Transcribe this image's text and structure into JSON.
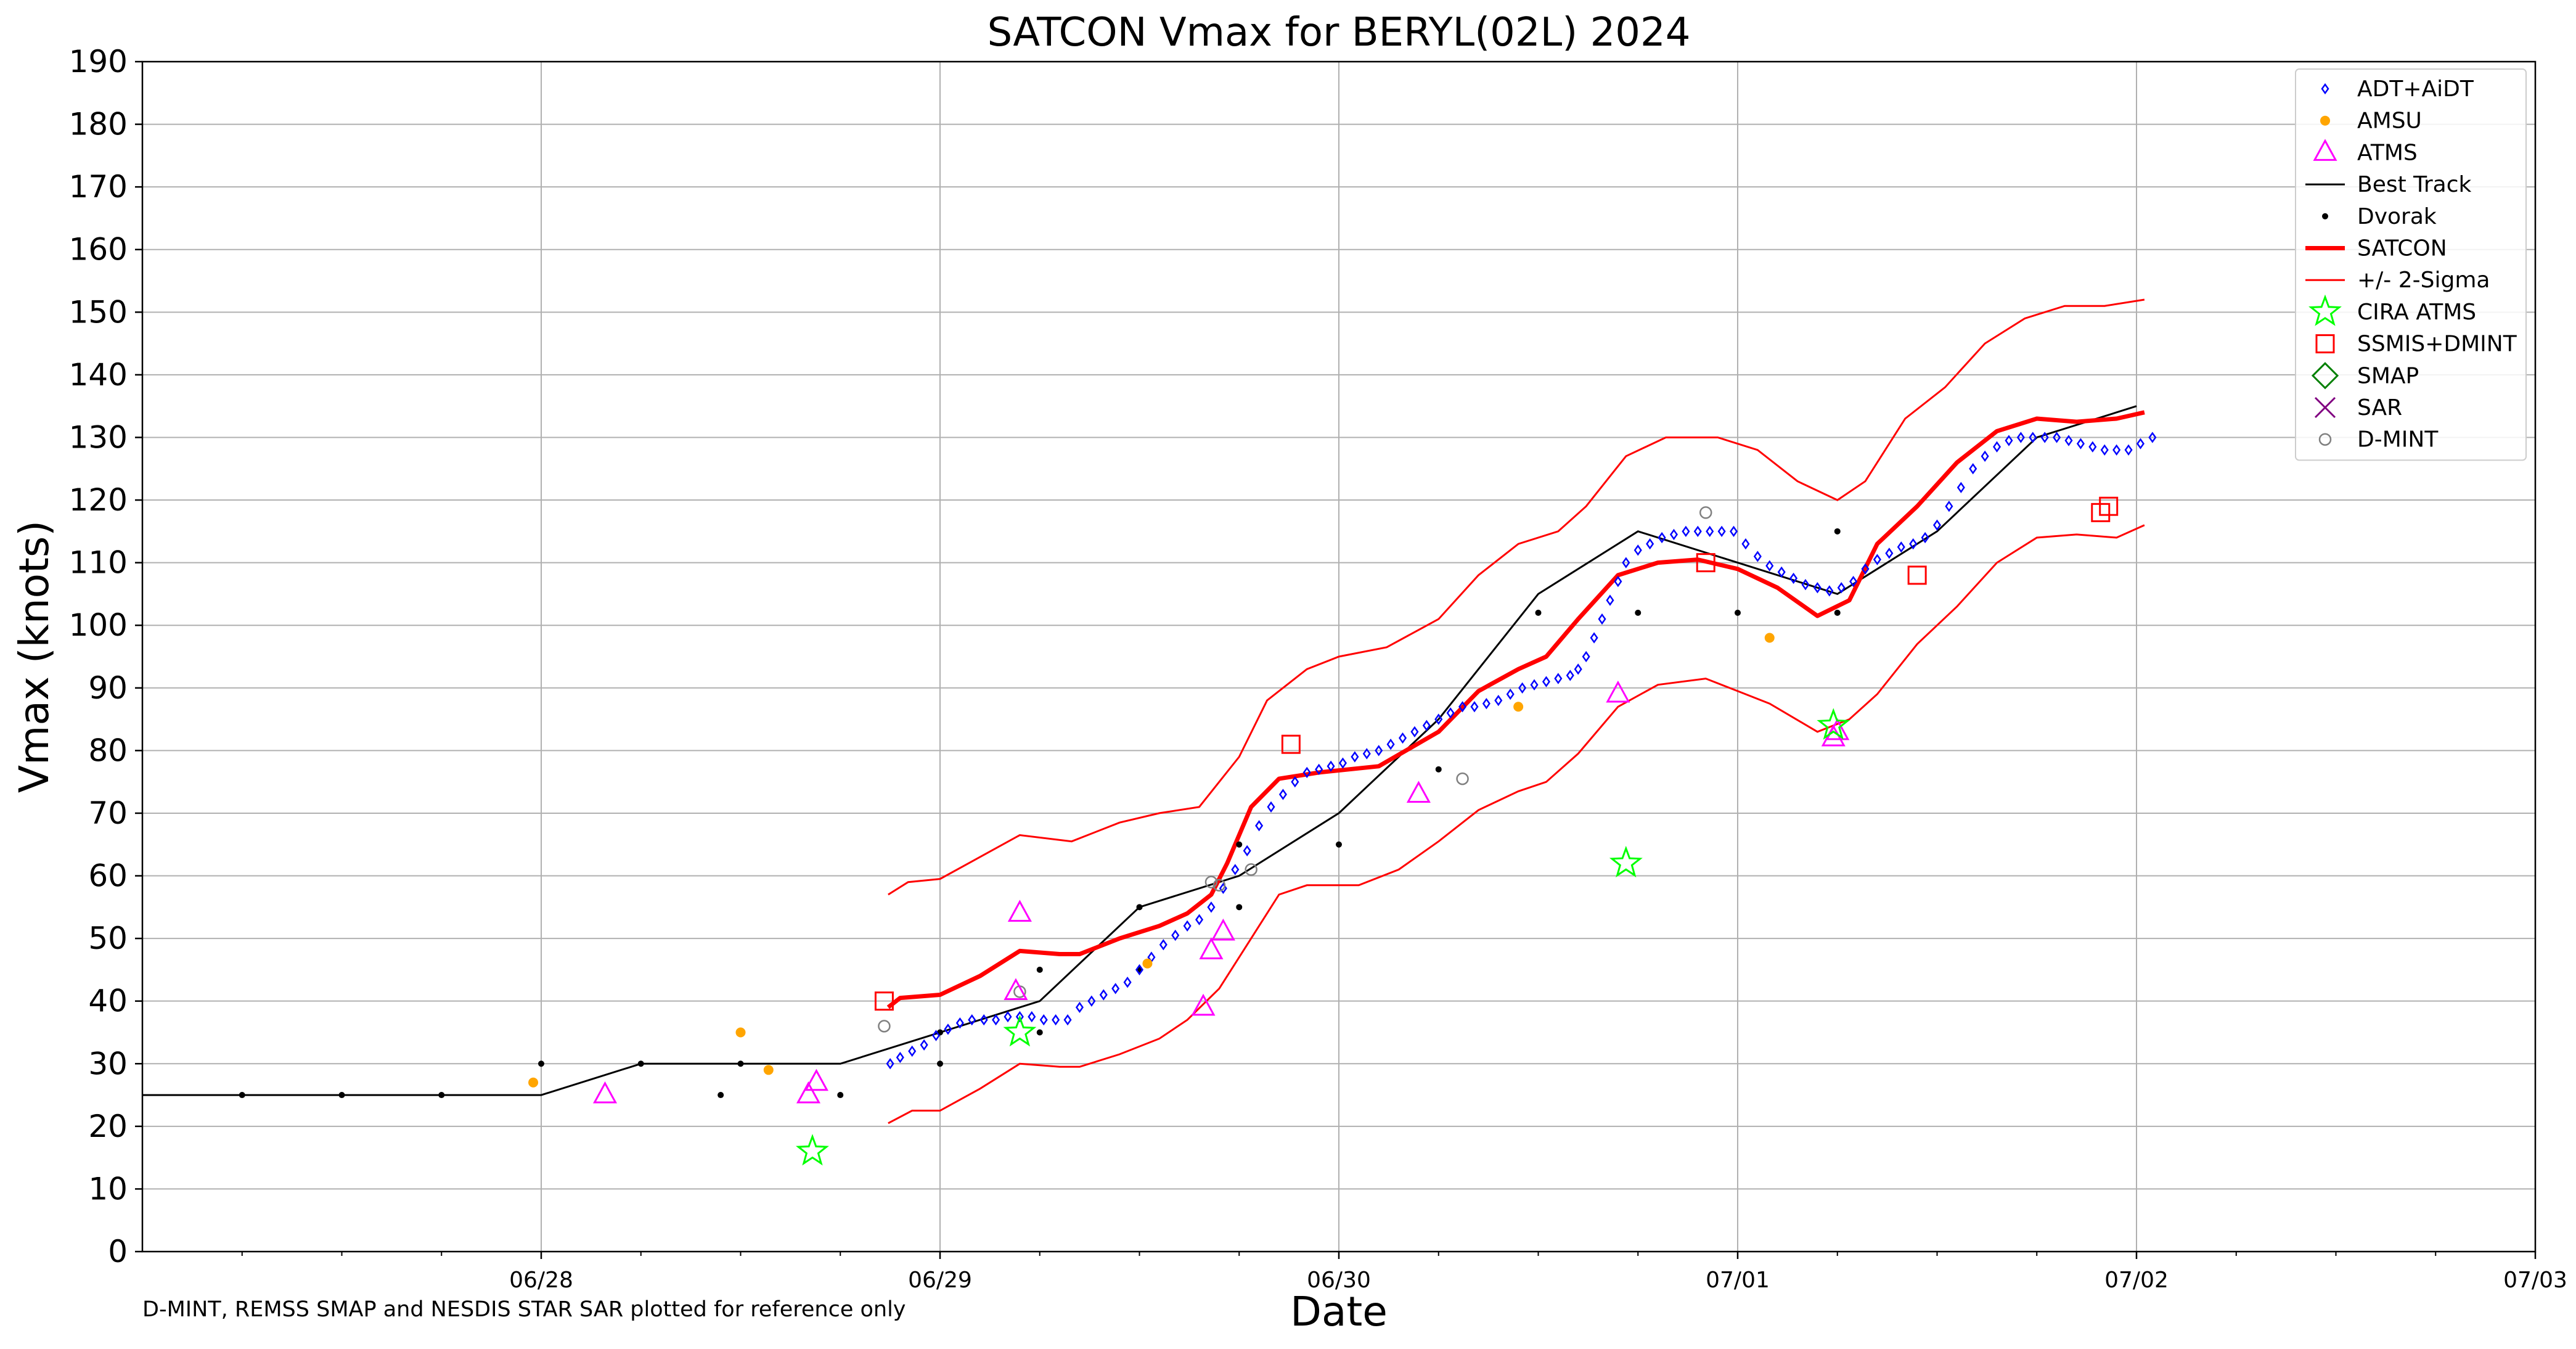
{
  "chart_data": {
    "type": "line",
    "title": "SATCON Vmax for BERYL(02L) 2024",
    "xlabel": "Date",
    "ylabel": "Vmax (knots)",
    "xlim": [
      -1,
      5
    ],
    "ylim": [
      0,
      190
    ],
    "x_unit": "days since 06/28 00Z",
    "x_tick_labels": [
      {
        "x": 0,
        "label": "06/28"
      },
      {
        "x": 1,
        "label": "06/29"
      },
      {
        "x": 2,
        "label": "06/30"
      },
      {
        "x": 3,
        "label": "07/01"
      },
      {
        "x": 4,
        "label": "07/02"
      },
      {
        "x": 5,
        "label": "07/03"
      }
    ],
    "y_ticks": [
      0,
      10,
      20,
      30,
      40,
      50,
      60,
      70,
      80,
      90,
      100,
      110,
      120,
      130,
      140,
      150,
      160,
      170,
      180,
      190
    ],
    "grid": true,
    "legend_position": "top-right",
    "footnote": "D-MINT, REMSS SMAP and NESDIS STAR SAR plotted for reference only",
    "series": [
      {
        "name": "ADT+AiDT",
        "color": "#0000ff",
        "marker": "diamond-open",
        "points": [
          [
            0.875,
            30
          ],
          [
            0.9,
            31
          ],
          [
            0.93,
            32
          ],
          [
            0.96,
            33
          ],
          [
            0.99,
            34.5
          ],
          [
            1.02,
            35.5
          ],
          [
            1.05,
            36.5
          ],
          [
            1.08,
            37
          ],
          [
            1.11,
            37
          ],
          [
            1.14,
            37
          ],
          [
            1.17,
            37.5
          ],
          [
            1.2,
            37.5
          ],
          [
            1.23,
            37.5
          ],
          [
            1.26,
            37
          ],
          [
            1.29,
            37
          ],
          [
            1.32,
            37
          ],
          [
            1.35,
            39
          ],
          [
            1.38,
            40
          ],
          [
            1.41,
            41
          ],
          [
            1.44,
            42
          ],
          [
            1.47,
            43
          ],
          [
            1.5,
            45
          ],
          [
            1.53,
            47
          ],
          [
            1.56,
            49
          ],
          [
            1.59,
            50.5
          ],
          [
            1.62,
            52
          ],
          [
            1.65,
            53
          ],
          [
            1.68,
            55
          ],
          [
            1.71,
            58
          ],
          [
            1.74,
            61
          ],
          [
            1.77,
            64
          ],
          [
            1.8,
            68
          ],
          [
            1.83,
            71
          ],
          [
            1.86,
            73
          ],
          [
            1.89,
            75
          ],
          [
            1.92,
            76.5
          ],
          [
            1.95,
            77
          ],
          [
            1.98,
            77.5
          ],
          [
            2.01,
            78
          ],
          [
            2.04,
            79
          ],
          [
            2.07,
            79.5
          ],
          [
            2.1,
            80
          ],
          [
            2.13,
            81
          ],
          [
            2.16,
            82
          ],
          [
            2.19,
            83
          ],
          [
            2.22,
            84
          ],
          [
            2.25,
            85
          ],
          [
            2.28,
            86
          ],
          [
            2.31,
            87
          ],
          [
            2.34,
            87
          ],
          [
            2.37,
            87.5
          ],
          [
            2.4,
            88
          ],
          [
            2.43,
            89
          ],
          [
            2.46,
            90
          ],
          [
            2.49,
            90.5
          ],
          [
            2.52,
            91
          ],
          [
            2.55,
            91.5
          ],
          [
            2.58,
            92
          ],
          [
            2.6,
            93
          ],
          [
            2.62,
            95
          ],
          [
            2.64,
            98
          ],
          [
            2.66,
            101
          ],
          [
            2.68,
            104
          ],
          [
            2.7,
            107
          ],
          [
            2.72,
            110
          ],
          [
            2.75,
            112
          ],
          [
            2.78,
            113
          ],
          [
            2.81,
            114
          ],
          [
            2.84,
            114.5
          ],
          [
            2.87,
            115
          ],
          [
            2.9,
            115
          ],
          [
            2.93,
            115
          ],
          [
            2.96,
            115
          ],
          [
            2.99,
            115
          ],
          [
            3.02,
            113
          ],
          [
            3.05,
            111
          ],
          [
            3.08,
            109.5
          ],
          [
            3.11,
            108.5
          ],
          [
            3.14,
            107.5
          ],
          [
            3.17,
            106.5
          ],
          [
            3.2,
            106
          ],
          [
            3.23,
            105.5
          ],
          [
            3.26,
            106
          ],
          [
            3.29,
            107
          ],
          [
            3.32,
            109
          ],
          [
            3.35,
            110.5
          ],
          [
            3.38,
            111.5
          ],
          [
            3.41,
            112.5
          ],
          [
            3.44,
            113
          ],
          [
            3.47,
            114
          ],
          [
            3.5,
            116
          ],
          [
            3.53,
            119
          ],
          [
            3.56,
            122
          ],
          [
            3.59,
            125
          ],
          [
            3.62,
            127
          ],
          [
            3.65,
            128.5
          ],
          [
            3.68,
            129.5
          ],
          [
            3.71,
            130
          ],
          [
            3.74,
            130
          ],
          [
            3.77,
            130
          ],
          [
            3.8,
            130
          ],
          [
            3.83,
            129.5
          ],
          [
            3.86,
            129
          ],
          [
            3.89,
            128.5
          ],
          [
            3.92,
            128
          ],
          [
            3.95,
            128
          ],
          [
            3.98,
            128
          ],
          [
            4.01,
            129
          ],
          [
            4.04,
            130
          ]
        ]
      },
      {
        "name": "AMSU",
        "color": "#ffa500",
        "marker": "dot",
        "points": [
          [
            -0.02,
            27
          ],
          [
            0.5,
            35
          ],
          [
            0.57,
            29
          ],
          [
            1.52,
            46
          ],
          [
            2.45,
            87
          ],
          [
            3.08,
            98
          ]
        ]
      },
      {
        "name": "ATMS",
        "color": "#ff00ff",
        "marker": "triangle-open",
        "points": [
          [
            0.16,
            25
          ],
          [
            0.67,
            25
          ],
          [
            0.69,
            27
          ],
          [
            1.19,
            41.5
          ],
          [
            1.2,
            54
          ],
          [
            1.66,
            39
          ],
          [
            1.68,
            48
          ],
          [
            1.71,
            51
          ],
          [
            2.2,
            73
          ],
          [
            2.7,
            89
          ],
          [
            3.24,
            82
          ],
          [
            3.25,
            83
          ]
        ]
      },
      {
        "name": "Best Track",
        "color": "#000000",
        "marker": "line",
        "points": [
          [
            -1,
            25
          ],
          [
            0,
            25
          ],
          [
            0.25,
            30
          ],
          [
            0.5,
            30
          ],
          [
            0.75,
            30
          ],
          [
            1,
            35
          ],
          [
            1.25,
            40
          ],
          [
            1.5,
            55
          ],
          [
            1.75,
            60
          ],
          [
            2,
            70
          ],
          [
            2.25,
            85
          ],
          [
            2.5,
            105
          ],
          [
            2.75,
            115
          ],
          [
            3,
            110
          ],
          [
            3.25,
            105
          ],
          [
            3.5,
            115
          ],
          [
            3.75,
            130
          ],
          [
            4,
            135
          ]
        ]
      },
      {
        "name": "Dvorak",
        "color": "#000000",
        "marker": "dot-small",
        "points": [
          [
            -0.75,
            25
          ],
          [
            -0.5,
            25
          ],
          [
            -0.25,
            25
          ],
          [
            0,
            30
          ],
          [
            0.25,
            30
          ],
          [
            0.45,
            25
          ],
          [
            0.5,
            30
          ],
          [
            0.75,
            25
          ],
          [
            1,
            30
          ],
          [
            1,
            35
          ],
          [
            1.25,
            35
          ],
          [
            1.25,
            45
          ],
          [
            1.5,
            45
          ],
          [
            1.5,
            55
          ],
          [
            1.75,
            55
          ],
          [
            1.75,
            65
          ],
          [
            2,
            65
          ],
          [
            2.25,
            77
          ],
          [
            2.5,
            102
          ],
          [
            2.75,
            102
          ],
          [
            3,
            102
          ],
          [
            3.25,
            102
          ],
          [
            3.25,
            115
          ]
        ]
      },
      {
        "name": "SATCON",
        "color": "#ff0000",
        "marker": "thick-line",
        "points": [
          [
            0.87,
            39
          ],
          [
            0.9,
            40.5
          ],
          [
            1,
            41
          ],
          [
            1.1,
            44
          ],
          [
            1.2,
            48
          ],
          [
            1.3,
            47.5
          ],
          [
            1.35,
            47.5
          ],
          [
            1.45,
            50
          ],
          [
            1.55,
            52
          ],
          [
            1.62,
            54
          ],
          [
            1.68,
            57
          ],
          [
            1.72,
            62
          ],
          [
            1.78,
            71
          ],
          [
            1.85,
            75.5
          ],
          [
            1.95,
            76.5
          ],
          [
            2.1,
            77.5
          ],
          [
            2.25,
            83
          ],
          [
            2.35,
            89.5
          ],
          [
            2.45,
            93
          ],
          [
            2.52,
            95
          ],
          [
            2.6,
            101
          ],
          [
            2.7,
            108
          ],
          [
            2.8,
            110
          ],
          [
            2.9,
            110.5
          ],
          [
            3,
            109
          ],
          [
            3.1,
            106
          ],
          [
            3.2,
            101.5
          ],
          [
            3.28,
            104
          ],
          [
            3.35,
            113
          ],
          [
            3.45,
            119
          ],
          [
            3.55,
            126
          ],
          [
            3.65,
            131
          ],
          [
            3.75,
            133
          ],
          [
            3.85,
            132.5
          ],
          [
            3.95,
            133
          ],
          [
            4.02,
            134
          ]
        ]
      },
      {
        "name": "+/- 2-Sigma",
        "color": "#ff0000",
        "marker": "thin-line",
        "upper": [
          [
            0.87,
            57
          ],
          [
            0.92,
            59
          ],
          [
            1,
            59.5
          ],
          [
            1.1,
            63
          ],
          [
            1.2,
            66.5
          ],
          [
            1.33,
            65.5
          ],
          [
            1.45,
            68.5
          ],
          [
            1.55,
            70
          ],
          [
            1.65,
            71
          ],
          [
            1.75,
            79
          ],
          [
            1.82,
            88
          ],
          [
            1.92,
            93
          ],
          [
            2,
            95
          ],
          [
            2.12,
            96.5
          ],
          [
            2.25,
            101
          ],
          [
            2.35,
            108
          ],
          [
            2.45,
            113
          ],
          [
            2.55,
            115
          ],
          [
            2.62,
            119
          ],
          [
            2.72,
            127
          ],
          [
            2.82,
            130
          ],
          [
            2.95,
            130
          ],
          [
            3.05,
            128
          ],
          [
            3.15,
            123
          ],
          [
            3.25,
            120
          ],
          [
            3.32,
            123
          ],
          [
            3.42,
            133
          ],
          [
            3.52,
            138
          ],
          [
            3.62,
            145
          ],
          [
            3.72,
            149
          ],
          [
            3.82,
            151
          ],
          [
            3.92,
            151
          ],
          [
            4.02,
            152
          ]
        ],
        "lower": [
          [
            0.87,
            20.5
          ],
          [
            0.93,
            22.5
          ],
          [
            1,
            22.5
          ],
          [
            1.1,
            26
          ],
          [
            1.2,
            30
          ],
          [
            1.3,
            29.5
          ],
          [
            1.35,
            29.5
          ],
          [
            1.45,
            31.5
          ],
          [
            1.55,
            34
          ],
          [
            1.62,
            37
          ],
          [
            1.7,
            42
          ],
          [
            1.78,
            50
          ],
          [
            1.85,
            57
          ],
          [
            1.92,
            58.5
          ],
          [
            2.05,
            58.5
          ],
          [
            2.15,
            61
          ],
          [
            2.25,
            65.5
          ],
          [
            2.35,
            70.5
          ],
          [
            2.45,
            73.5
          ],
          [
            2.52,
            75
          ],
          [
            2.6,
            79.5
          ],
          [
            2.7,
            87
          ],
          [
            2.8,
            90.5
          ],
          [
            2.92,
            91.5
          ],
          [
            3,
            89.5
          ],
          [
            3.08,
            87.5
          ],
          [
            3.2,
            83
          ],
          [
            3.28,
            85
          ],
          [
            3.35,
            89
          ],
          [
            3.45,
            97
          ],
          [
            3.55,
            103
          ],
          [
            3.65,
            110
          ],
          [
            3.75,
            114
          ],
          [
            3.85,
            114.5
          ],
          [
            3.95,
            114
          ],
          [
            4.02,
            116
          ]
        ]
      },
      {
        "name": "CIRA ATMS",
        "color": "#00ff00",
        "marker": "star-open",
        "points": [
          [
            0.68,
            16
          ],
          [
            1.2,
            35
          ],
          [
            2.72,
            62
          ],
          [
            3.24,
            84
          ]
        ]
      },
      {
        "name": "SSMIS+DMINT",
        "color": "#ff0000",
        "marker": "square-open",
        "points": [
          [
            0.86,
            40
          ],
          [
            1.88,
            81
          ],
          [
            2.92,
            110
          ],
          [
            3.45,
            108
          ],
          [
            3.91,
            118
          ],
          [
            3.93,
            119
          ]
        ]
      },
      {
        "name": "SMAP",
        "color": "#008000",
        "marker": "diamond-open-large",
        "points": []
      },
      {
        "name": "SAR",
        "color": "#800080",
        "marker": "x",
        "points": []
      },
      {
        "name": "D-MINT",
        "color": "#808080",
        "marker": "circle-open",
        "points": [
          [
            0.86,
            36
          ],
          [
            1.2,
            41.5
          ],
          [
            1.68,
            59
          ],
          [
            1.7,
            58.5
          ],
          [
            1.78,
            61
          ],
          [
            2.31,
            75.5
          ],
          [
            2.92,
            118
          ]
        ]
      }
    ]
  }
}
